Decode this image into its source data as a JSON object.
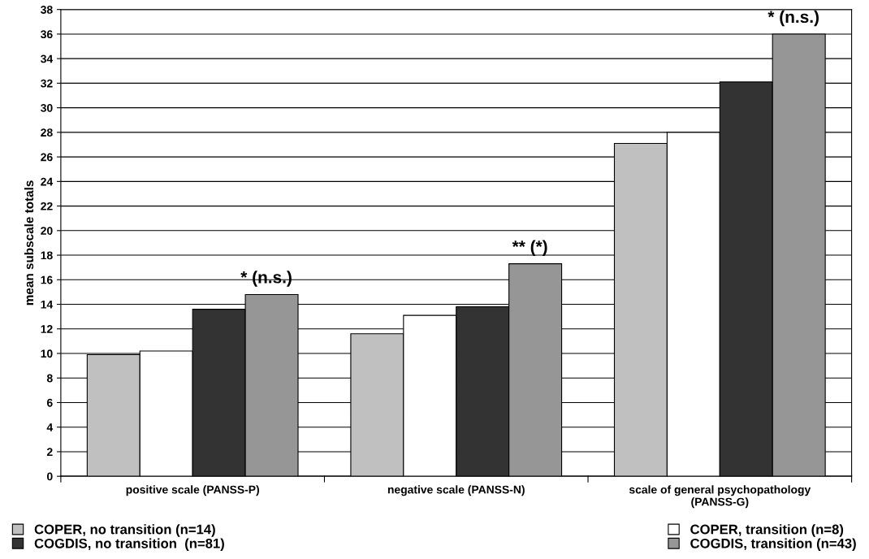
{
  "chart_data": {
    "type": "bar",
    "ylabel": "mean subscale totals",
    "categories": [
      "positive scale (PANSS-P)",
      "negative scale (PANSS-N)",
      "scale of general psychopathology\n(PANSS-G)"
    ],
    "series": [
      {
        "name": "COPER, no transition (n=14)",
        "color": "#c0c0c0",
        "values": [
          9.9,
          11.6,
          27.1
        ]
      },
      {
        "name": "COPER, transition (n=8)",
        "color": "#ffffff",
        "values": [
          10.2,
          13.1,
          28.0
        ]
      },
      {
        "name": "COGDIS, no transition  (n=81)",
        "color": "#333333",
        "values": [
          13.6,
          13.8,
          32.1
        ]
      },
      {
        "name": "COGDIS, transition (n=43)",
        "color": "#969696",
        "values": [
          14.8,
          17.3,
          36.0
        ]
      }
    ],
    "ylim": [
      0,
      38
    ],
    "yticks": [
      0,
      2,
      4,
      6,
      8,
      10,
      12,
      14,
      16,
      18,
      20,
      22,
      24,
      26,
      28,
      30,
      32,
      34,
      36,
      38
    ],
    "grid": "y",
    "legend": "bottom",
    "annotations": [
      "* (n.s.)",
      "** (*)",
      "* (n.s.)"
    ]
  }
}
